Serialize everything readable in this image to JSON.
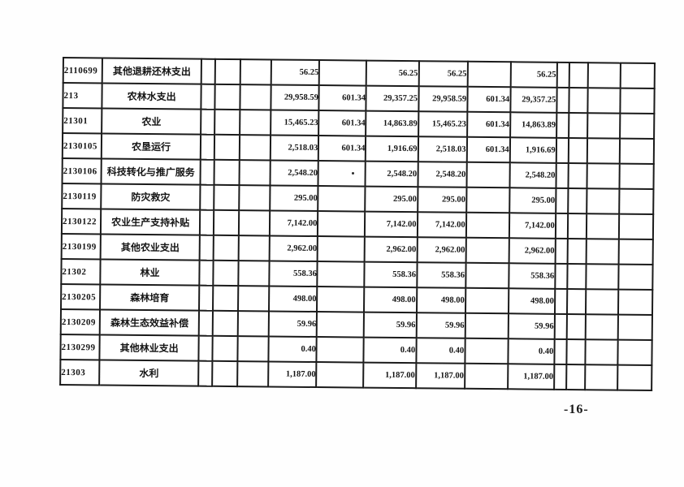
{
  "page_number": "-16-",
  "table": {
    "rows": [
      {
        "code": "2110699",
        "name": "其他退耕还林支出",
        "values": [
          "56.25",
          "",
          "56.25",
          "56.25",
          "",
          "56.25"
        ]
      },
      {
        "code": "213",
        "name": "农林水支出",
        "values": [
          "29,958.59",
          "601.34",
          "29,357.25",
          "29,958.59",
          "601.34",
          "29,357.25"
        ]
      },
      {
        "code": "21301",
        "name": "农业",
        "values": [
          "15,465.23",
          "601.34",
          "14,863.89",
          "15,465.23",
          "601.34",
          "14,863.89"
        ]
      },
      {
        "code": "2130105",
        "name": "农垦运行",
        "values": [
          "2,518.03",
          "601.34",
          "1,916.69",
          "2,518.03",
          "601.34",
          "1,916.69"
        ]
      },
      {
        "code": "2130106",
        "name": "科技转化与推广服务",
        "values": [
          "2,548.20",
          "",
          "2,548.20",
          "2,548.20",
          "",
          "2,548.20"
        ]
      },
      {
        "code": "2130119",
        "name": "防灾救灾",
        "values": [
          "295.00",
          "",
          "295.00",
          "295.00",
          "",
          "295.00"
        ]
      },
      {
        "code": "2130122",
        "name": "农业生产支持补贴",
        "values": [
          "7,142.00",
          "",
          "7,142.00",
          "7,142.00",
          "",
          "7,142.00"
        ]
      },
      {
        "code": "2130199",
        "name": "其他农业支出",
        "values": [
          "2,962.00",
          "",
          "2,962.00",
          "2,962.00",
          "",
          "2,962.00"
        ]
      },
      {
        "code": "21302",
        "name": "林业",
        "values": [
          "558.36",
          "",
          "558.36",
          "558.36",
          "",
          "558.36"
        ]
      },
      {
        "code": "2130205",
        "name": "森林培育",
        "values": [
          "498.00",
          "",
          "498.00",
          "498.00",
          "",
          "498.00"
        ]
      },
      {
        "code": "2130209",
        "name": "森林生态效益补偿",
        "values": [
          "59.96",
          "",
          "59.96",
          "59.96",
          "",
          "59.96"
        ]
      },
      {
        "code": "2130299",
        "name": "其他林业支出",
        "values": [
          "0.40",
          "",
          "0.40",
          "0.40",
          "",
          "0.40"
        ]
      },
      {
        "code": "21303",
        "name": "水利",
        "values": [
          "1,187.00",
          "",
          "1,187.00",
          "1,187.00",
          "",
          "1,187.00"
        ]
      }
    ]
  }
}
